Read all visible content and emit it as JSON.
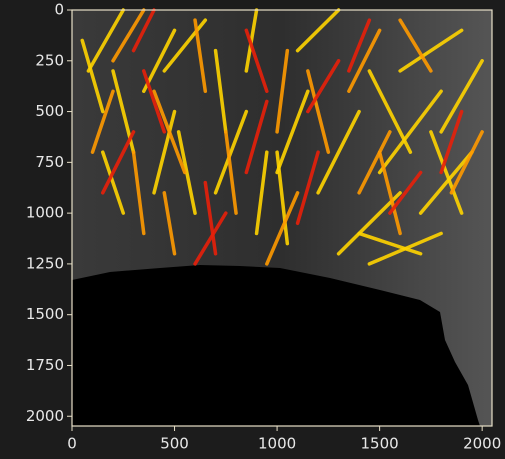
{
  "chart_data": {
    "type": "segments",
    "xlim": [
      0,
      2048
    ],
    "ylim": [
      2048,
      0
    ],
    "xticks": [
      0,
      500,
      1000,
      1500,
      2000
    ],
    "yticks": [
      0,
      250,
      500,
      750,
      1000,
      1250,
      1500,
      1750,
      2000
    ],
    "series": [
      {
        "color": "#ffd400",
        "segments": [
          [
            80,
            300,
            250,
            0
          ],
          [
            150,
            500,
            50,
            150
          ],
          [
            300,
            700,
            200,
            300
          ],
          [
            400,
            900,
            500,
            500
          ],
          [
            600,
            1000,
            520,
            600
          ],
          [
            700,
            900,
            850,
            500
          ],
          [
            900,
            1100,
            950,
            700
          ],
          [
            1000,
            800,
            1150,
            400
          ],
          [
            1200,
            900,
            1400,
            500
          ],
          [
            1300,
            1200,
            1600,
            900
          ],
          [
            1500,
            800,
            1800,
            400
          ],
          [
            1700,
            1000,
            1950,
            700
          ],
          [
            1600,
            300,
            1900,
            100
          ],
          [
            1800,
            600,
            2000,
            250
          ],
          [
            450,
            300,
            650,
            50
          ],
          [
            850,
            300,
            900,
            0
          ],
          [
            1100,
            200,
            1300,
            0
          ],
          [
            1400,
            1100,
            1700,
            1200
          ],
          [
            1450,
            1250,
            1800,
            1100
          ],
          [
            250,
            1000,
            150,
            700
          ],
          [
            1050,
            1150,
            1000,
            700
          ],
          [
            750,
            600,
            700,
            200
          ],
          [
            1650,
            700,
            1450,
            300
          ],
          [
            350,
            400,
            500,
            100
          ],
          [
            1900,
            1000,
            1750,
            600
          ]
        ]
      },
      {
        "color": "#ff9a00",
        "segments": [
          [
            100,
            700,
            200,
            400
          ],
          [
            350,
            1100,
            300,
            700
          ],
          [
            550,
            800,
            400,
            400
          ],
          [
            800,
            1000,
            750,
            600
          ],
          [
            1000,
            600,
            1050,
            200
          ],
          [
            1250,
            700,
            1150,
            300
          ],
          [
            1400,
            900,
            1550,
            600
          ],
          [
            1600,
            1100,
            1500,
            700
          ],
          [
            1850,
            900,
            2000,
            600
          ],
          [
            200,
            250,
            350,
            0
          ],
          [
            650,
            400,
            600,
            50
          ],
          [
            1350,
            400,
            1500,
            100
          ],
          [
            950,
            1250,
            1100,
            900
          ],
          [
            1750,
            300,
            1600,
            50
          ],
          [
            500,
            1200,
            450,
            900
          ]
        ]
      },
      {
        "color": "#e8200a",
        "segments": [
          [
            150,
            900,
            300,
            600
          ],
          [
            450,
            600,
            350,
            300
          ],
          [
            700,
            1200,
            650,
            850
          ],
          [
            850,
            800,
            950,
            450
          ],
          [
            1100,
            1050,
            1200,
            700
          ],
          [
            1350,
            300,
            1450,
            50
          ],
          [
            1550,
            1000,
            1700,
            800
          ],
          [
            300,
            200,
            400,
            0
          ],
          [
            950,
            400,
            850,
            100
          ],
          [
            1150,
            500,
            1300,
            250
          ],
          [
            1800,
            800,
            1900,
            500
          ],
          [
            600,
            1250,
            750,
            1000
          ]
        ]
      }
    ]
  }
}
